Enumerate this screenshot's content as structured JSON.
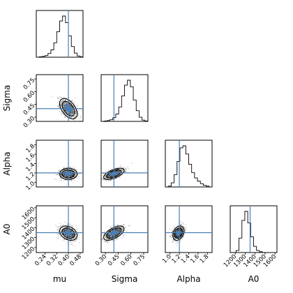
{
  "chart_data": {
    "type": "corner",
    "parameters": [
      "mu",
      "Sigma",
      "Alpha",
      "A0"
    ],
    "axis_labels": [
      "mu",
      "Sigma",
      "Alpha",
      "A0"
    ],
    "ranges": [
      [
        0.18,
        0.5
      ],
      [
        0.25,
        0.8
      ],
      [
        0.9,
        1.9
      ],
      [
        1150,
        1620
      ]
    ],
    "ticks": [
      [
        "0.24",
        "0.32",
        "0.40",
        "0.48"
      ],
      [
        "0.30",
        "0.45",
        "0.60",
        "0.75"
      ],
      [
        "1.0",
        "1.2",
        "1.4",
        "1.6",
        "1.8"
      ],
      [
        "1200",
        "1300",
        "1400",
        "1500",
        "1600"
      ]
    ],
    "tick_values": [
      [
        0.24,
        0.32,
        0.4,
        0.48
      ],
      [
        0.3,
        0.45,
        0.6,
        0.75
      ],
      [
        1.0,
        1.2,
        1.4,
        1.6,
        1.8
      ],
      [
        1200,
        1300,
        1400,
        1500,
        1600
      ]
    ],
    "truths": [
      0.4,
      0.4,
      1.2,
      1350
    ],
    "means": [
      0.4,
      0.4,
      1.18,
      1345
    ],
    "stds": [
      0.025,
      0.05,
      0.05,
      30
    ],
    "correlations": [
      [
        1.0,
        -0.5,
        0.0,
        -0.3
      ],
      [
        -0.5,
        1.0,
        0.6,
        0.6
      ],
      [
        0.0,
        0.6,
        1.0,
        0.3
      ],
      [
        -0.3,
        0.6,
        0.3,
        1.0
      ]
    ],
    "marginal_histograms": [
      [
        0.2,
        0.22,
        0.24,
        0.26,
        0.28,
        0.3,
        0.32,
        0.34,
        0.36,
        0.38,
        0.4,
        0.42,
        0.44,
        0.46,
        0.48,
        0.5
      ],
      [
        0.0,
        0.01,
        0.02,
        0.04,
        0.09,
        0.18,
        0.35,
        0.62,
        0.88,
        1.0,
        0.84,
        0.52,
        0.26,
        0.1,
        0.03,
        0.01
      ],
      [
        0.0,
        0.02,
        0.1,
        0.3,
        0.62,
        0.95,
        1.0,
        0.8,
        0.55,
        0.35,
        0.22,
        0.14,
        0.08,
        0.04,
        0.02,
        0.0
      ],
      [
        0.0,
        0.0,
        0.05,
        0.35,
        0.78,
        1.0,
        0.72,
        0.38,
        0.15,
        0.05,
        0.02,
        0.0,
        0.0,
        0.0,
        0.0,
        0.0
      ]
    ],
    "histogram_bins_note": "",
    "grid": false,
    "legend": false
  }
}
